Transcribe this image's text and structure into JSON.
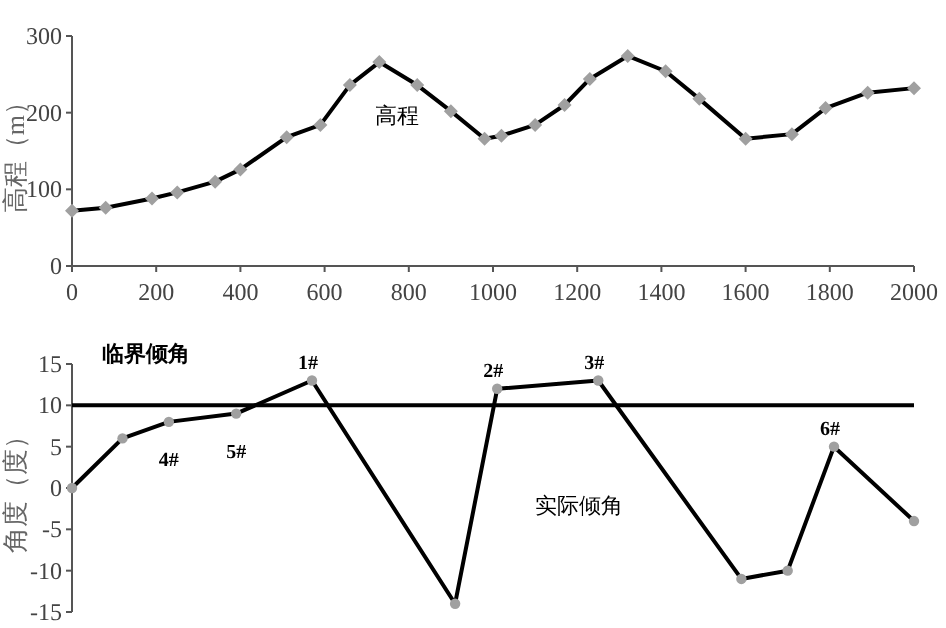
{
  "chart_data": [
    {
      "type": "line",
      "ylabel": "高程（m）",
      "x": [
        0,
        80,
        190,
        250,
        340,
        400,
        510,
        590,
        660,
        730,
        820,
        900,
        980,
        1020,
        1100,
        1170,
        1230,
        1320,
        1410,
        1490,
        1600,
        1710,
        1790,
        1890,
        2000
      ],
      "series": [
        {
          "name": "高程",
          "color": "#000000",
          "values": [
            72,
            76,
            88,
            96,
            110,
            126,
            168,
            184,
            236,
            266,
            236,
            202,
            166,
            170,
            184,
            210,
            244,
            274,
            254,
            218,
            166,
            172,
            206,
            226,
            232
          ]
        }
      ],
      "xlim": [
        0,
        2000
      ],
      "xticks": [
        0,
        200,
        400,
        600,
        800,
        1000,
        1200,
        1400,
        1600,
        1800,
        2000
      ],
      "ylim": [
        0,
        300
      ],
      "yticks": [
        0,
        100,
        200,
        300
      ],
      "marker": "diamond",
      "grid": false
    },
    {
      "type": "line",
      "ylabel": "角度（度）",
      "x": [
        0,
        120,
        230,
        390,
        570,
        910,
        1010,
        1250,
        1590,
        1700,
        1810,
        2000
      ],
      "series": [
        {
          "name": "实际倾角",
          "color": "#000000",
          "values": [
            0,
            6,
            8,
            9,
            13,
            -14,
            12,
            13,
            -11,
            -10,
            5,
            -4
          ]
        }
      ],
      "ref_lines": [
        {
          "axis": "y",
          "value": 10,
          "label": "临界倾角",
          "color": "#000000"
        }
      ],
      "annotations": [
        {
          "text": "1#",
          "x": 570,
          "y": 13
        },
        {
          "text": "2#",
          "x": 1010,
          "y": 12
        },
        {
          "text": "3#",
          "x": 1250,
          "y": 13
        },
        {
          "text": "4#",
          "x": 230,
          "y": 8
        },
        {
          "text": "5#",
          "x": 390,
          "y": 9
        },
        {
          "text": "6#",
          "x": 1810,
          "y": 5
        }
      ],
      "xlim": [
        0,
        2000
      ],
      "ylim": [
        -15,
        15
      ],
      "yticks": [
        -15,
        -10,
        -5,
        0,
        5,
        10,
        15
      ],
      "tick_labels": "y",
      "marker": "circle",
      "grid": false
    }
  ]
}
